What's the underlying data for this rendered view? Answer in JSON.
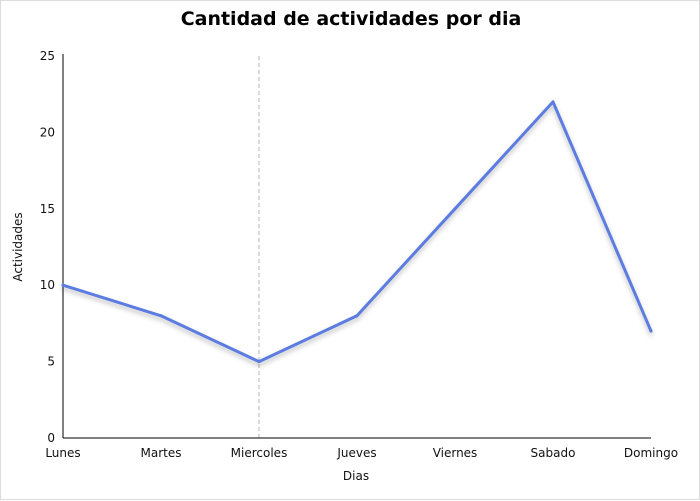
{
  "chart_data": {
    "type": "line",
    "title": "Cantidad de actividades por dia",
    "xlabel": "Dias",
    "ylabel": "Actividades",
    "categories": [
      "Lunes",
      "Martes",
      "Miercoles",
      "Jueves",
      "Viernes",
      "Sabado",
      "Domingo"
    ],
    "series": [
      {
        "values": [
          10,
          8,
          5,
          8,
          15,
          22,
          7
        ],
        "color": "#5b7be0"
      }
    ],
    "ylim": [
      0,
      25
    ],
    "yticks": [
      0,
      5,
      10,
      15,
      20,
      25
    ],
    "grid": false,
    "legend": "none",
    "highlight_category": "Miercoles"
  }
}
